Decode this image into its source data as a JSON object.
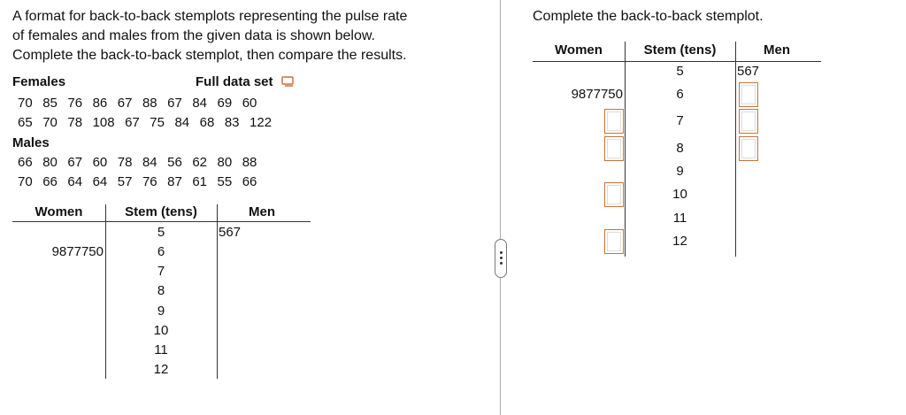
{
  "left": {
    "intro": [
      "A format for back-to-back stemplots representing the pulse rate",
      "of females and males from the given data is shown below.",
      "Complete the back-to-back stemplot, then compare the results."
    ],
    "females_label": "Females",
    "full_data_set": "Full data set",
    "females": [
      [
        70,
        85,
        76,
        86,
        67,
        88,
        67,
        84,
        69,
        60
      ],
      [
        65,
        70,
        78,
        108,
        67,
        75,
        84,
        68,
        83,
        122
      ]
    ],
    "males_label": "Males",
    "males": [
      [
        66,
        80,
        67,
        60,
        78,
        84,
        56,
        62,
        80,
        88
      ],
      [
        70,
        66,
        64,
        64,
        57,
        76,
        87,
        61,
        55,
        66
      ]
    ],
    "stemplot": {
      "headers": [
        "Women",
        "Stem (tens)",
        "Men"
      ],
      "rows": [
        {
          "stem": 5,
          "men": "567"
        },
        {
          "stem": 6,
          "women": "9877750"
        },
        {
          "stem": 7
        },
        {
          "stem": 8
        },
        {
          "stem": 9
        },
        {
          "stem": 10
        },
        {
          "stem": 11
        },
        {
          "stem": 12
        }
      ]
    }
  },
  "right": {
    "instruction": "Complete the back-to-back stemplot.",
    "stemplot": {
      "headers": [
        "Women",
        "Stem (tens)",
        "Men"
      ],
      "rows": [
        {
          "stem": 5,
          "men": "567"
        },
        {
          "stem": 6,
          "women": "9877750"
        },
        {
          "stem": 7
        },
        {
          "stem": 8
        },
        {
          "stem": 9
        },
        {
          "stem": 10
        },
        {
          "stem": 11
        },
        {
          "stem": 12
        }
      ]
    }
  }
}
